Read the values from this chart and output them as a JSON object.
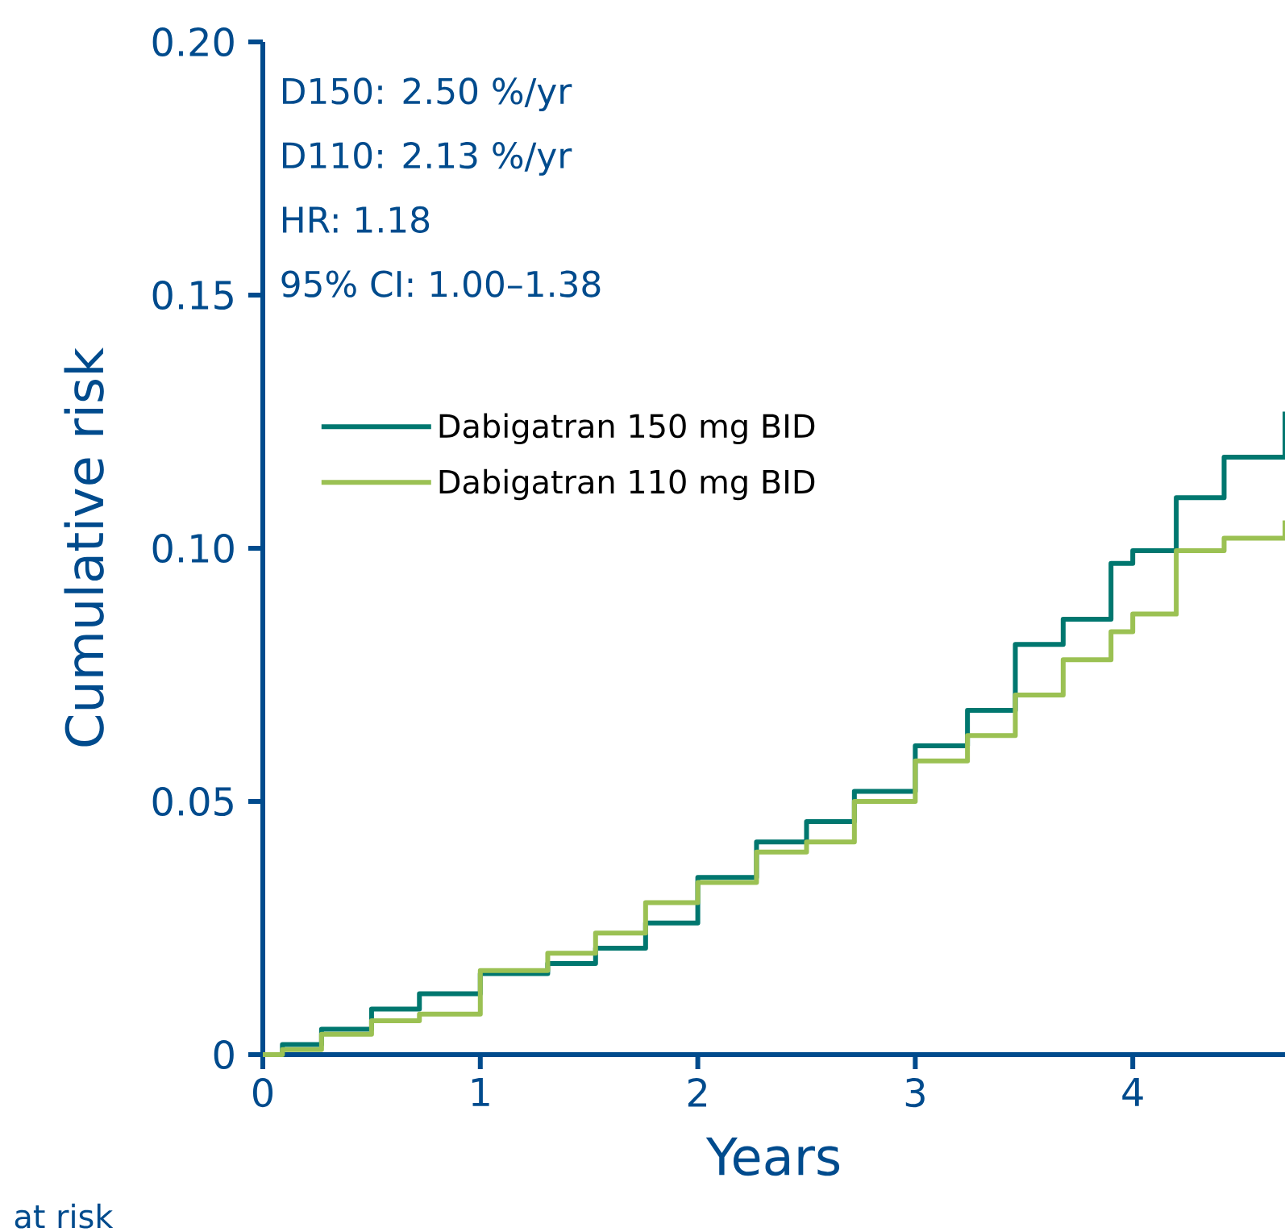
{
  "chart_data": {
    "type": "step",
    "xlabel": "Years",
    "ylabel": "Cumulative risk",
    "annotations": [
      "D150: 2.50 %/yr",
      "D110: 2.13 %/yr",
      "HR: 1.18",
      "95% CI: 1.00–1.38",
      "at risk"
    ],
    "x": [
      0,
      0.09,
      0.27,
      0.5,
      0.72,
      1.0,
      1.31,
      1.53,
      1.76,
      2.0,
      2.27,
      2.5,
      2.72,
      3.0,
      3.24,
      3.46,
      3.68,
      3.9,
      4.0,
      4.2,
      4.42,
      4.7
    ],
    "series": [
      {
        "name": "Dabigatran 150 mg BID",
        "color": "#00776f",
        "values": [
          0,
          0.002,
          0.005,
          0.009,
          0.012,
          0.016,
          0.018,
          0.021,
          0.026,
          0.035,
          0.042,
          0.046,
          0.052,
          0.061,
          0.068,
          0.081,
          0.086,
          0.097,
          0.0995,
          0.11,
          0.118,
          0.127
        ]
      },
      {
        "name": "Dabigatran 110 mg BID",
        "color": "#9bc153",
        "values": [
          0,
          0.001,
          0.004,
          0.0067,
          0.008,
          0.0166,
          0.02,
          0.024,
          0.03,
          0.034,
          0.04,
          0.042,
          0.05,
          0.058,
          0.063,
          0.071,
          0.078,
          0.0835,
          0.087,
          0.0995,
          0.102,
          0.1055
        ]
      }
    ],
    "xlim": [
      0,
      4.7
    ],
    "ylim": [
      0,
      0.2
    ],
    "xticks": [
      0,
      1,
      2,
      3,
      4
    ],
    "yticks": [
      0,
      {
        "value": 0.05,
        "label": "0.05"
      },
      {
        "value": 0.1,
        "label": "0.10"
      },
      {
        "value": 0.15,
        "label": "0.15"
      },
      {
        "value": 0.2,
        "label": "0.20"
      }
    ],
    "legend": "top left",
    "grid": false,
    "marker": "none",
    "line_style": "solid"
  }
}
